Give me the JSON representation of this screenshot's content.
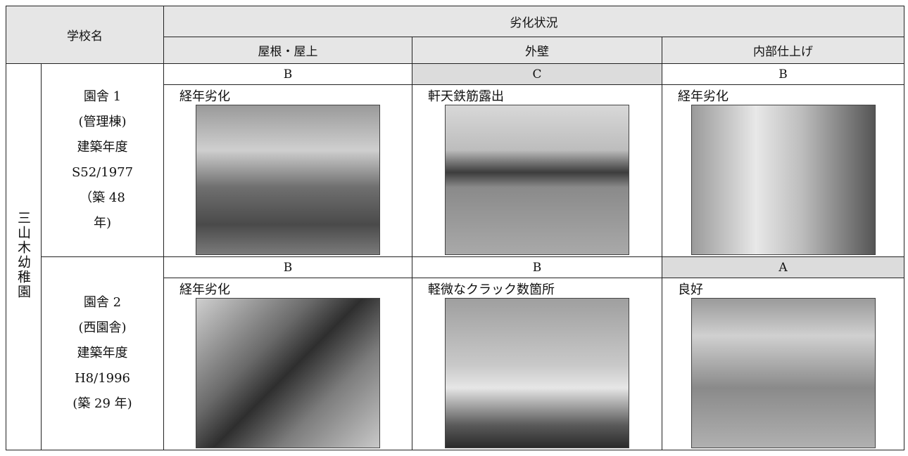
{
  "table": {
    "header": {
      "school_name": "学校名",
      "condition": "劣化状況",
      "columns": [
        "屋根・屋上",
        "外壁",
        "内部仕上げ"
      ]
    },
    "school": "三山木幼稚園",
    "rows": [
      {
        "building": [
          "園舎 1",
          "(管理棟)",
          "建築年度",
          "S52/1977",
          "（築 48",
          "年)"
        ],
        "grades": [
          "B",
          "C",
          "B"
        ],
        "notes": [
          "経年劣化",
          "軒天鉄筋露出",
          "経年劣化"
        ]
      },
      {
        "building": [
          "園舎 2",
          "(西園舎)",
          "建築年度",
          "H8/1996",
          "(築 29 年)"
        ],
        "grades": [
          "B",
          "B",
          "A"
        ],
        "notes": [
          "経年劣化",
          "軽微なクラック数箇所",
          "良好"
        ]
      }
    ]
  }
}
